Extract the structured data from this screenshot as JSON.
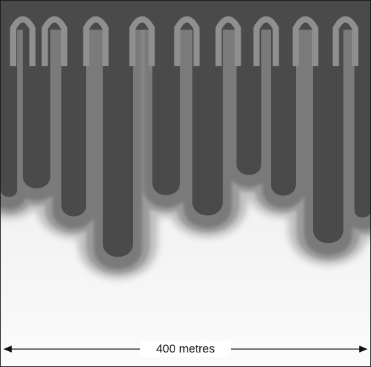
{
  "figure": {
    "scale_bar": {
      "label": "400 metres"
    },
    "colors": {
      "dark_band": "#4a4a4a",
      "mid_band": "#7a7a7a",
      "light_band": "#9c9c9c",
      "background": "#f7f7f7"
    }
  }
}
